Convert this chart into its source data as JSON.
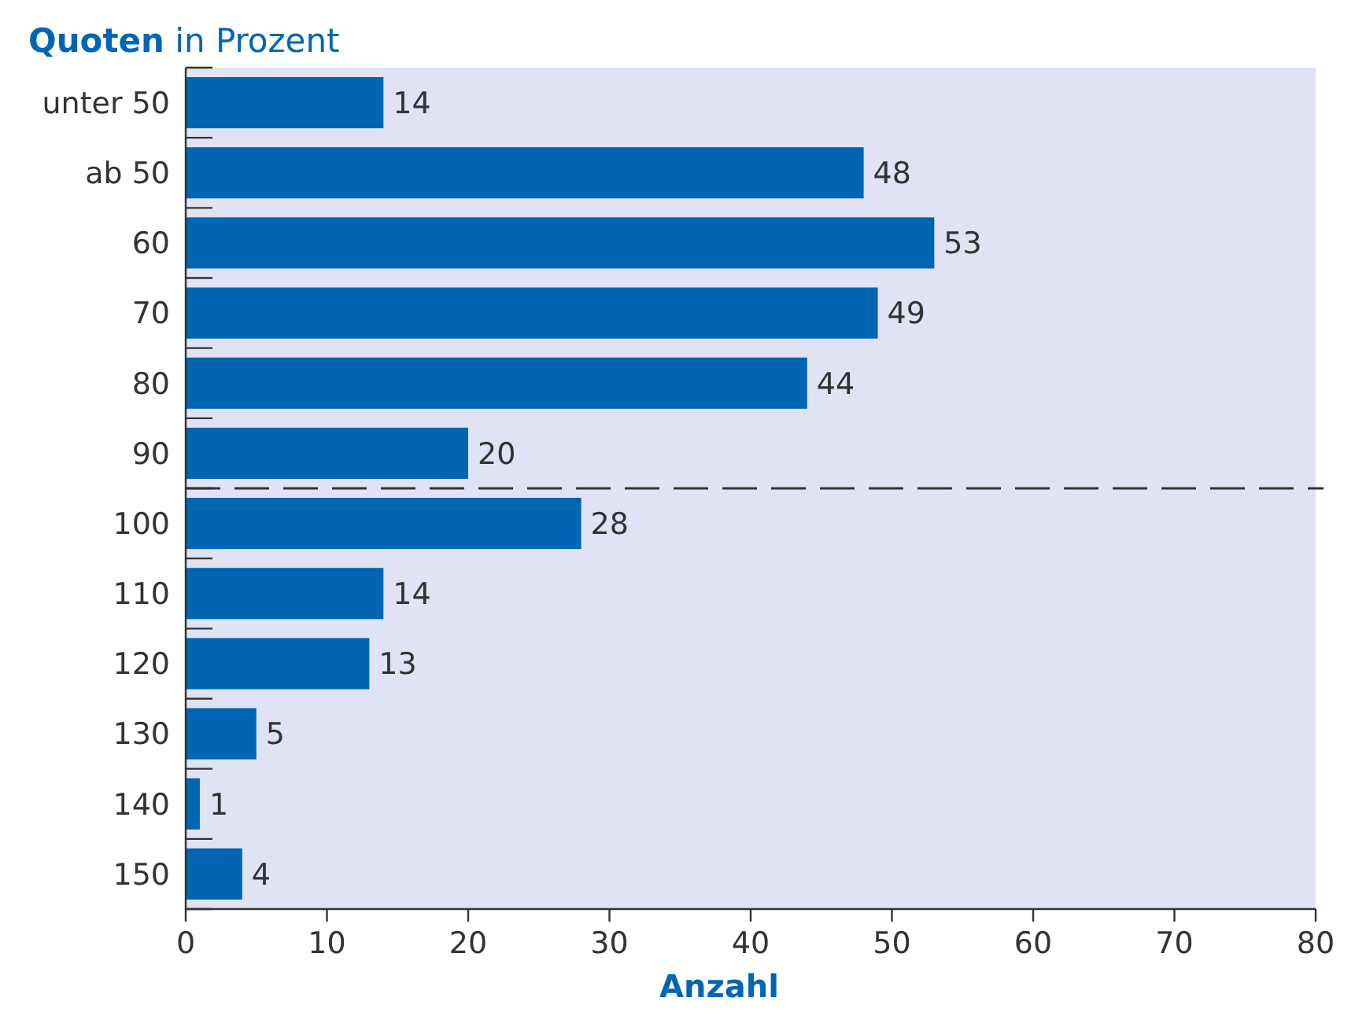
{
  "chart_data": {
    "type": "bar",
    "orientation": "horizontal",
    "ylabel": "Quoten in Prozent",
    "xlabel": "Anzahl",
    "categories": [
      "unter 50",
      "ab 50",
      "60",
      "70",
      "80",
      "90",
      "100",
      "110",
      "120",
      "130",
      "140",
      "150"
    ],
    "values": [
      14,
      48,
      53,
      49,
      44,
      20,
      28,
      14,
      13,
      5,
      1,
      4
    ],
    "color": "#0066b3",
    "xlim": [
      0,
      80
    ],
    "xticks": [
      0,
      10,
      20,
      30,
      40,
      50,
      60,
      70,
      80
    ],
    "grid": false,
    "data_labels": true
  }
}
